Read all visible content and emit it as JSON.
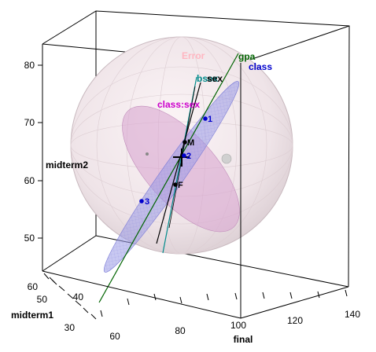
{
  "chart_data": {
    "type": "scatter",
    "title": "",
    "axes": {
      "x": {
        "label": "final",
        "ticks": [
          60,
          80,
          100,
          120,
          140
        ]
      },
      "y": {
        "label": "midterm2",
        "ticks": [
          50,
          60,
          70,
          80
        ]
      },
      "z": {
        "label": "midterm1",
        "ticks": [
          30,
          40,
          50,
          60
        ]
      }
    },
    "terms": [
      {
        "name": "Error",
        "color": "#ffb6c1",
        "kind": "ellipsoid"
      },
      {
        "name": "gpa",
        "color": "#006400",
        "kind": "line"
      },
      {
        "name": "class",
        "color": "#0000cd",
        "kind": "ellipse"
      },
      {
        "name": "sex",
        "color": "#000000",
        "kind": "line"
      },
      {
        "name": "bsex",
        "color": "#008b8b",
        "kind": "line"
      },
      {
        "name": "class:sex",
        "color": "#cc00cc",
        "kind": "ellipse"
      }
    ],
    "group_means": [
      {
        "label": "M",
        "color": "#000000"
      },
      {
        "label": "F",
        "color": "#000000"
      },
      {
        "label": "1",
        "color": "#0000cd"
      },
      {
        "label": "2",
        "color": "#0000cd"
      },
      {
        "label": "3",
        "color": "#0000cd"
      }
    ]
  }
}
